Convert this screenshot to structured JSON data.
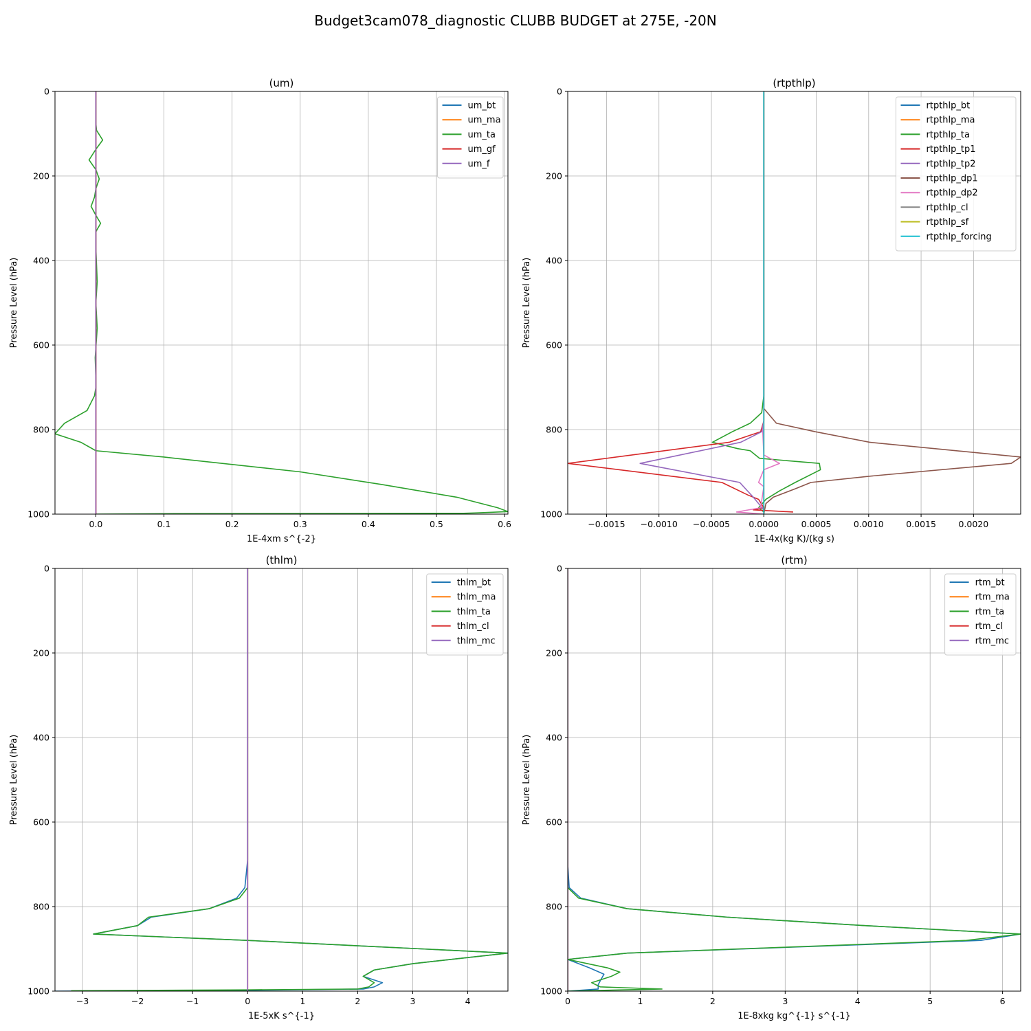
{
  "suptitle": "Budget3cam078_diagnostic CLUBB BUDGET at 275E, -20N",
  "colors": {
    "C0": "#1f77b4",
    "C1": "#ff7f0e",
    "C2": "#2ca02c",
    "C3": "#d62728",
    "C4": "#9467bd",
    "C5": "#8c564b",
    "C6": "#e377c2",
    "C7": "#7f7f7f",
    "C8": "#bcbd22",
    "C9": "#17becf",
    "grid": "#b0b0b0"
  },
  "chart_data": [
    {
      "type": "line",
      "title": "(um)",
      "xlabel": "1E-4xm s^{-2}",
      "ylabel": "Pressure Level (hPa)",
      "xlim": [
        -0.06,
        0.605
      ],
      "ylim": [
        1000,
        0
      ],
      "xticks": [
        0.0,
        0.1,
        0.2,
        0.3,
        0.4,
        0.5,
        0.6
      ],
      "xticklabels": [
        "0.0",
        "0.1",
        "0.2",
        "0.3",
        "0.4",
        "0.5",
        "0.6"
      ],
      "yticks": [
        0,
        200,
        400,
        600,
        800,
        1000
      ],
      "grid": true,
      "legend_position": "upper right",
      "series": [
        {
          "name": "um_bt",
          "color": "C0",
          "x": [
            0,
            0
          ],
          "y": [
            0,
            1000
          ]
        },
        {
          "name": "um_ma",
          "color": "C1",
          "x": [
            0,
            0
          ],
          "y": [
            0,
            1000
          ]
        },
        {
          "name": "um_ta",
          "color": "C2",
          "x": [
            0,
            0,
            0.001,
            0.01,
            0.0,
            -0.01,
            0.0,
            0.005,
            0.0,
            -0.002,
            -0.007,
            0.0,
            0.007,
            0.0,
            0.0,
            0.002,
            0.0,
            0.002,
            -0.001,
            0.0,
            0.0,
            -0.002,
            -0.013,
            -0.046,
            -0.06,
            -0.022,
            0.0,
            0.1,
            0.3,
            0.42,
            0.53,
            0.59,
            0.605,
            0.56,
            0.54,
            0.1,
            0.0
          ],
          "y": [
            0,
            75,
            92,
            115,
            137,
            162,
            185,
            207,
            230,
            250,
            272,
            293,
            312,
            332,
            370,
            450,
            500,
            560,
            630,
            680,
            700,
            720,
            755,
            785,
            810,
            830,
            850,
            865,
            900,
            930,
            960,
            985,
            994,
            997,
            998,
            999,
            1000
          ]
        },
        {
          "name": "um_gf",
          "color": "C3",
          "x": [
            0,
            0
          ],
          "y": [
            0,
            1000
          ]
        },
        {
          "name": "um_f",
          "color": "C4",
          "x": [
            0,
            0
          ],
          "y": [
            0,
            1000
          ]
        }
      ]
    },
    {
      "type": "line",
      "title": "(rtpthlp)",
      "xlabel": "1E-4x(kg K)/(kg s)",
      "ylabel": "Pressure Level (hPa)",
      "xlim": [
        -0.00187,
        0.00245
      ],
      "ylim": [
        1000,
        0
      ],
      "xticks": [
        -0.0015,
        -0.001,
        -0.0005,
        0.0,
        0.0005,
        0.001,
        0.0015,
        0.002
      ],
      "xticklabels": [
        "−0.0015",
        "−0.0010",
        "−0.0005",
        "0.0000",
        "0.0005",
        "0.0010",
        "0.0015",
        "0.0020"
      ],
      "yticks": [
        0,
        200,
        400,
        600,
        800,
        1000
      ],
      "grid": true,
      "legend_position": "upper right",
      "series": [
        {
          "name": "rtpthlp_bt",
          "color": "C0",
          "x": [
            0,
            0
          ],
          "y": [
            0,
            1000
          ]
        },
        {
          "name": "rtpthlp_ma",
          "color": "C1",
          "x": [
            0,
            0
          ],
          "y": [
            0,
            1000
          ]
        },
        {
          "name": "rtpthlp_ta",
          "color": "C2",
          "x": [
            0,
            0,
            -2e-05,
            -0.00013,
            -0.0003,
            -0.00049,
            -0.00025,
            -0.00013,
            -4e-05,
            0.00053,
            0.00054,
            0.0003,
            0.00015,
            2e-05,
            -5e-05,
            0.0,
            0.0
          ],
          "y": [
            0,
            720,
            760,
            785,
            805,
            830,
            845,
            850,
            868,
            880,
            895,
            925,
            945,
            965,
            985,
            995,
            1000
          ]
        },
        {
          "name": "rtpthlp_tp1",
          "color": "C3",
          "x": [
            0,
            0,
            -3e-05,
            -0.00033,
            -0.00187,
            -0.0004,
            -0.00015,
            -5e-05,
            0.0,
            -0.0001,
            0.00028
          ],
          "y": [
            0,
            780,
            805,
            830,
            880,
            925,
            955,
            965,
            985,
            990,
            995
          ]
        },
        {
          "name": "rtpthlp_tp2",
          "color": "C4",
          "x": [
            0,
            0,
            -2e-05,
            -0.00022,
            -0.00118,
            -0.00023,
            -0.0001,
            0.0,
            0.0
          ],
          "y": [
            0,
            780,
            805,
            830,
            880,
            925,
            960,
            990,
            1000
          ]
        },
        {
          "name": "rtpthlp_dp1",
          "color": "C5",
          "x": [
            0,
            0,
            0.00012,
            0.00049,
            0.00101,
            0.00245,
            0.00236,
            0.00102,
            0.00045,
            0.0003,
            9e-05,
            2e-05,
            0.0
          ],
          "y": [
            0,
            750,
            785,
            805,
            830,
            865,
            880,
            910,
            925,
            940,
            960,
            975,
            1000
          ]
        },
        {
          "name": "rtpthlp_dp2",
          "color": "C6",
          "x": [
            0,
            0,
            -1e-05,
            0.0,
            0.00015,
            0.0,
            -5e-05,
            0.0,
            -3e-05,
            -0.00026,
            0.0
          ],
          "y": [
            0,
            780,
            805,
            860,
            880,
            895,
            925,
            935,
            985,
            995,
            1000
          ]
        },
        {
          "name": "rtpthlp_cl",
          "color": "C7",
          "x": [
            0,
            0
          ],
          "y": [
            0,
            1000
          ]
        },
        {
          "name": "rtpthlp_sf",
          "color": "C8",
          "x": [
            0,
            0
          ],
          "y": [
            0,
            1000
          ]
        },
        {
          "name": "rtpthlp_forcing",
          "color": "C9",
          "x": [
            0,
            0
          ],
          "y": [
            0,
            1000
          ]
        }
      ]
    },
    {
      "type": "line",
      "title": "(thlm)",
      "xlabel": "1E-5xK s^{-1}",
      "ylabel": "Pressure Level (hPa)",
      "xlim": [
        -3.5,
        4.73
      ],
      "ylim": [
        1000,
        0
      ],
      "xticks": [
        -3,
        -2,
        -1,
        0,
        1,
        2,
        3,
        4
      ],
      "xticklabels": [
        "−3",
        "−2",
        "−1",
        "0",
        "1",
        "2",
        "3",
        "4"
      ],
      "yticks": [
        0,
        200,
        400,
        600,
        800,
        1000
      ],
      "grid": true,
      "legend_position": "upper right",
      "series": [
        {
          "name": "thlm_bt",
          "color": "C0",
          "x": [
            0,
            0,
            -0.05,
            -0.2,
            -0.7,
            -1.75,
            -2.0,
            -2.8,
            0.0,
            4.73,
            3.0,
            2.3,
            2.1,
            2.45,
            2.3,
            2.1,
            0.0,
            -3.5
          ],
          "y": [
            0,
            690,
            755,
            780,
            805,
            825,
            845,
            865,
            880,
            910,
            935,
            950,
            965,
            980,
            990,
            995,
            998,
            1000
          ]
        },
        {
          "name": "thlm_ma",
          "color": "C1",
          "x": [
            0,
            0
          ],
          "y": [
            0,
            1000
          ]
        },
        {
          "name": "thlm_ta",
          "color": "C2",
          "x": [
            0,
            0,
            0.0,
            -0.15,
            -0.7,
            -1.8,
            -2.0,
            -2.8,
            0.0,
            4.73,
            3.0,
            2.3,
            2.1,
            2.3,
            2.2,
            2.0,
            0.0,
            -3.2,
            0.0
          ],
          "y": [
            0,
            690,
            755,
            780,
            805,
            825,
            845,
            865,
            880,
            910,
            935,
            950,
            965,
            980,
            990,
            995,
            997,
            999,
            1000
          ]
        },
        {
          "name": "thlm_cl",
          "color": "C3",
          "x": [
            0,
            0
          ],
          "y": [
            0,
            1000
          ]
        },
        {
          "name": "thlm_mc",
          "color": "C4",
          "x": [
            0,
            0
          ],
          "y": [
            0,
            1000
          ]
        }
      ]
    },
    {
      "type": "line",
      "title": "(rtm)",
      "xlabel": "1E-8xkg kg^{-1} s^{-1}",
      "ylabel": "Pressure Level (hPa)",
      "xlim": [
        0,
        6.25
      ],
      "ylim": [
        1000,
        0
      ],
      "xticks": [
        0,
        1,
        2,
        3,
        4,
        5,
        6
      ],
      "xticklabels": [
        "0",
        "1",
        "2",
        "3",
        "4",
        "5",
        "6"
      ],
      "yticks": [
        0,
        200,
        400,
        600,
        800,
        1000
      ],
      "grid": true,
      "legend_position": "upper right",
      "series": [
        {
          "name": "rtm_bt",
          "color": "C0",
          "x": [
            0,
            0,
            0.02,
            0.18,
            0.82,
            2.2,
            4.1,
            6.25,
            5.7,
            0.82,
            0.0,
            0.3,
            0.5,
            0.45,
            0.42,
            0.42,
            0.0
          ],
          "y": [
            0,
            700,
            755,
            780,
            805,
            825,
            845,
            865,
            880,
            910,
            925,
            945,
            960,
            975,
            985,
            995,
            1000
          ]
        },
        {
          "name": "rtm_ma",
          "color": "C1",
          "x": [
            0,
            0
          ],
          "y": [
            0,
            1000
          ]
        },
        {
          "name": "rtm_ta",
          "color": "C2",
          "x": [
            0,
            0,
            0.0,
            0.15,
            0.82,
            2.2,
            4.1,
            6.25,
            5.5,
            0.82,
            0.0,
            0.55,
            0.72,
            0.6,
            0.33,
            0.45,
            1.3,
            0.0
          ],
          "y": [
            0,
            700,
            755,
            780,
            805,
            825,
            845,
            865,
            880,
            910,
            925,
            945,
            955,
            965,
            980,
            990,
            995,
            1000
          ]
        },
        {
          "name": "rtm_cl",
          "color": "C3",
          "x": [
            0,
            0
          ],
          "y": [
            0,
            1000
          ]
        },
        {
          "name": "rtm_mc",
          "color": "C4",
          "x": [
            0,
            0
          ],
          "y": [
            0,
            1000
          ]
        }
      ]
    }
  ]
}
